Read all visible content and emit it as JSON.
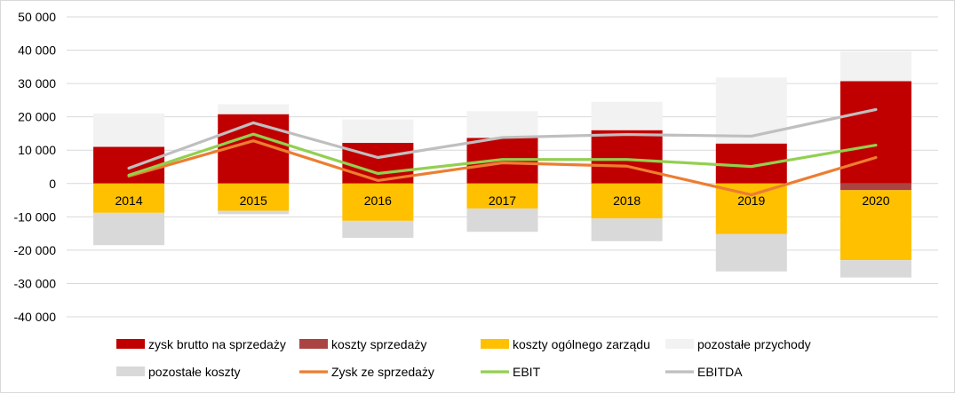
{
  "chart_data": {
    "type": "bar",
    "categories": [
      "2014",
      "2015",
      "2016",
      "2017",
      "2018",
      "2019",
      "2020"
    ],
    "ylim": [
      -40000,
      50000
    ],
    "yticks": [
      50000,
      40000,
      30000,
      20000,
      10000,
      0,
      -10000,
      -20000,
      -30000,
      -40000
    ],
    "ytick_labels": [
      "50 000",
      "40 000",
      "30 000",
      "20 000",
      "10 000",
      "0",
      "-10 000",
      "-20 000",
      "-30 000",
      "-40 000"
    ],
    "grid": true,
    "legend_position": "bottom",
    "bar_series": [
      {
        "name": "zysk brutto na sprzedaży",
        "color": "#c00000",
        "stack": "positive",
        "values": [
          11000,
          20800,
          12200,
          13700,
          16000,
          12000,
          30700
        ]
      },
      {
        "name": "koszty sprzedaży",
        "color": "#a94443",
        "stack": "negative",
        "values": [
          0,
          0,
          0,
          0,
          0,
          0,
          -2000
        ]
      },
      {
        "name": "koszty ogólnego zarządu",
        "color": "#ffc000",
        "stack": "negative",
        "values": [
          -8800,
          -8200,
          -11200,
          -7500,
          -10500,
          -15200,
          -21000
        ]
      },
      {
        "name": "pozostałe przychody",
        "color": "#f2f2f2",
        "stack": "positive",
        "values": [
          10000,
          3000,
          7000,
          8000,
          8500,
          19800,
          9000
        ]
      },
      {
        "name": "pozostałe koszty",
        "color": "#d9d9d9",
        "stack": "negative",
        "values": [
          -9700,
          -1000,
          -5100,
          -7000,
          -6800,
          -11200,
          -5200
        ]
      }
    ],
    "line_series": [
      {
        "name": "Zysk ze sprzedaży",
        "color": "#ed7d31",
        "values": [
          2200,
          12800,
          900,
          6200,
          5200,
          -3400,
          7800
        ]
      },
      {
        "name": "EBIT",
        "color": "#92d050",
        "values": [
          2500,
          14800,
          3000,
          7200,
          7200,
          5100,
          11500
        ]
      },
      {
        "name": "EBITDA",
        "color": "#bfbfbf",
        "values": [
          4600,
          18200,
          7800,
          13800,
          14700,
          14200,
          22200
        ]
      }
    ],
    "legend_order": [
      "zysk brutto na sprzedaży",
      "koszty sprzedaży",
      "koszty ogólnego zarządu",
      "pozostałe przychody",
      "pozostałe koszty",
      "Zysk ze sprzedaży",
      "EBIT",
      "EBITDA"
    ]
  }
}
